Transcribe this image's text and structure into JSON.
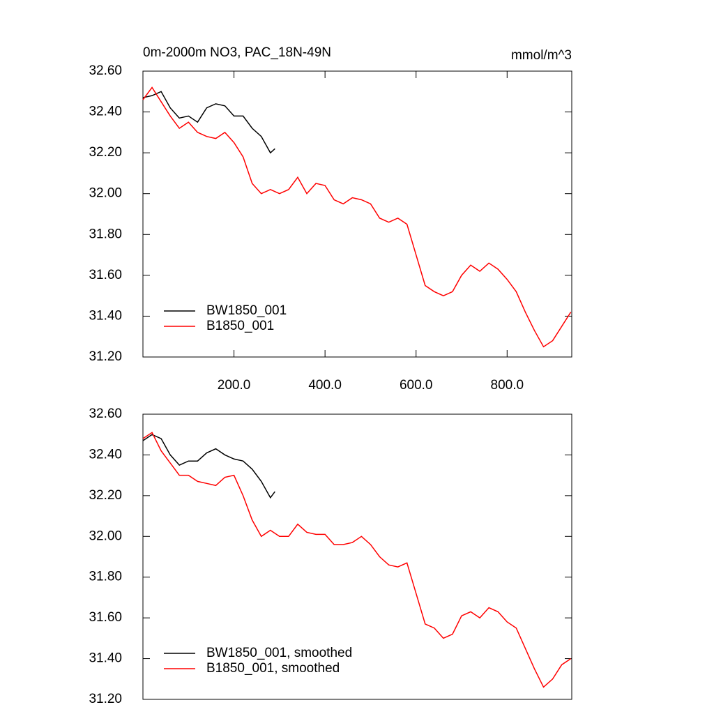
{
  "chart_data": [
    {
      "type": "line",
      "title": "0m-2000m NO3, PAC_18N-49N",
      "units": "mmol/m^3",
      "xlim": [
        0,
        942
      ],
      "ylim": [
        31.2,
        32.6
      ],
      "xticks": [
        {
          "value": 200,
          "label": "200.0"
        },
        {
          "value": 400,
          "label": "400.0"
        },
        {
          "value": 600,
          "label": "600.0"
        },
        {
          "value": 800,
          "label": "800.0"
        }
      ],
      "yticks": [
        {
          "value": 31.2,
          "label": "31.20"
        },
        {
          "value": 31.4,
          "label": "31.40"
        },
        {
          "value": 31.6,
          "label": "31.60"
        },
        {
          "value": 31.8,
          "label": "31.80"
        },
        {
          "value": 32.0,
          "label": "32.00"
        },
        {
          "value": 32.2,
          "label": "32.20"
        },
        {
          "value": 32.4,
          "label": "32.40"
        },
        {
          "value": 32.6,
          "label": "32.60"
        }
      ],
      "legend": "lower left",
      "series": [
        {
          "name": "BW1850_001",
          "color": "#000000",
          "x": [
            0,
            20,
            40,
            60,
            80,
            100,
            120,
            140,
            160,
            180,
            200,
            220,
            240,
            260,
            280,
            290
          ],
          "values": [
            32.47,
            32.48,
            32.5,
            32.42,
            32.37,
            32.38,
            32.35,
            32.42,
            32.44,
            32.43,
            32.38,
            32.38,
            32.32,
            32.28,
            32.2,
            32.22
          ]
        },
        {
          "name": "B1850_001",
          "color": "#ff0000",
          "x": [
            0,
            20,
            40,
            60,
            80,
            100,
            120,
            140,
            160,
            180,
            200,
            220,
            240,
            260,
            280,
            300,
            320,
            340,
            360,
            380,
            400,
            420,
            440,
            460,
            480,
            500,
            520,
            540,
            560,
            580,
            600,
            620,
            640,
            660,
            680,
            700,
            720,
            740,
            760,
            780,
            800,
            820,
            840,
            860,
            880,
            900,
            920,
            940
          ],
          "values": [
            32.46,
            32.52,
            32.45,
            32.38,
            32.32,
            32.35,
            32.3,
            32.28,
            32.27,
            32.3,
            32.25,
            32.18,
            32.05,
            32.0,
            32.02,
            32.0,
            32.02,
            32.08,
            32.0,
            32.05,
            32.04,
            31.97,
            31.95,
            31.98,
            31.97,
            31.95,
            31.88,
            31.86,
            31.88,
            31.85,
            31.7,
            31.55,
            31.52,
            31.5,
            31.52,
            31.6,
            31.65,
            31.62,
            31.66,
            31.63,
            31.58,
            31.52,
            31.42,
            31.33,
            31.25,
            31.28,
            31.35,
            31.42
          ]
        }
      ]
    },
    {
      "type": "line",
      "xlim": [
        0,
        942
      ],
      "ylim": [
        31.2,
        32.6
      ],
      "yticks": [
        {
          "value": 31.2,
          "label": "31.20"
        },
        {
          "value": 31.4,
          "label": "31.40"
        },
        {
          "value": 31.6,
          "label": "31.60"
        },
        {
          "value": 31.8,
          "label": "31.80"
        },
        {
          "value": 32.0,
          "label": "32.00"
        },
        {
          "value": 32.2,
          "label": "32.20"
        },
        {
          "value": 32.4,
          "label": "32.40"
        },
        {
          "value": 32.6,
          "label": "32.60"
        }
      ],
      "legend": "lower left",
      "series": [
        {
          "name": "BW1850_001, smoothed",
          "color": "#000000",
          "x": [
            0,
            20,
            40,
            60,
            80,
            100,
            120,
            140,
            160,
            180,
            200,
            220,
            240,
            260,
            280,
            290
          ],
          "values": [
            32.47,
            32.5,
            32.48,
            32.4,
            32.35,
            32.37,
            32.37,
            32.41,
            32.43,
            32.4,
            32.38,
            32.37,
            32.33,
            32.27,
            32.19,
            32.22
          ]
        },
        {
          "name": "B1850_001, smoothed",
          "color": "#ff0000",
          "x": [
            0,
            20,
            40,
            60,
            80,
            100,
            120,
            140,
            160,
            180,
            200,
            220,
            240,
            260,
            280,
            300,
            320,
            340,
            360,
            380,
            400,
            420,
            440,
            460,
            480,
            500,
            520,
            540,
            560,
            580,
            600,
            620,
            640,
            660,
            680,
            700,
            720,
            740,
            760,
            780,
            800,
            820,
            840,
            860,
            880,
            900,
            920,
            940
          ],
          "values": [
            32.48,
            32.51,
            32.42,
            32.36,
            32.3,
            32.3,
            32.27,
            32.26,
            32.25,
            32.29,
            32.3,
            32.2,
            32.08,
            32.0,
            32.03,
            32.0,
            32.0,
            32.06,
            32.02,
            32.01,
            32.01,
            31.96,
            31.96,
            31.97,
            32.0,
            31.96,
            31.9,
            31.86,
            31.85,
            31.87,
            31.72,
            31.57,
            31.55,
            31.5,
            31.52,
            31.61,
            31.63,
            31.6,
            31.65,
            31.63,
            31.58,
            31.55,
            31.45,
            31.35,
            31.26,
            31.3,
            31.37,
            31.4
          ]
        }
      ]
    }
  ]
}
